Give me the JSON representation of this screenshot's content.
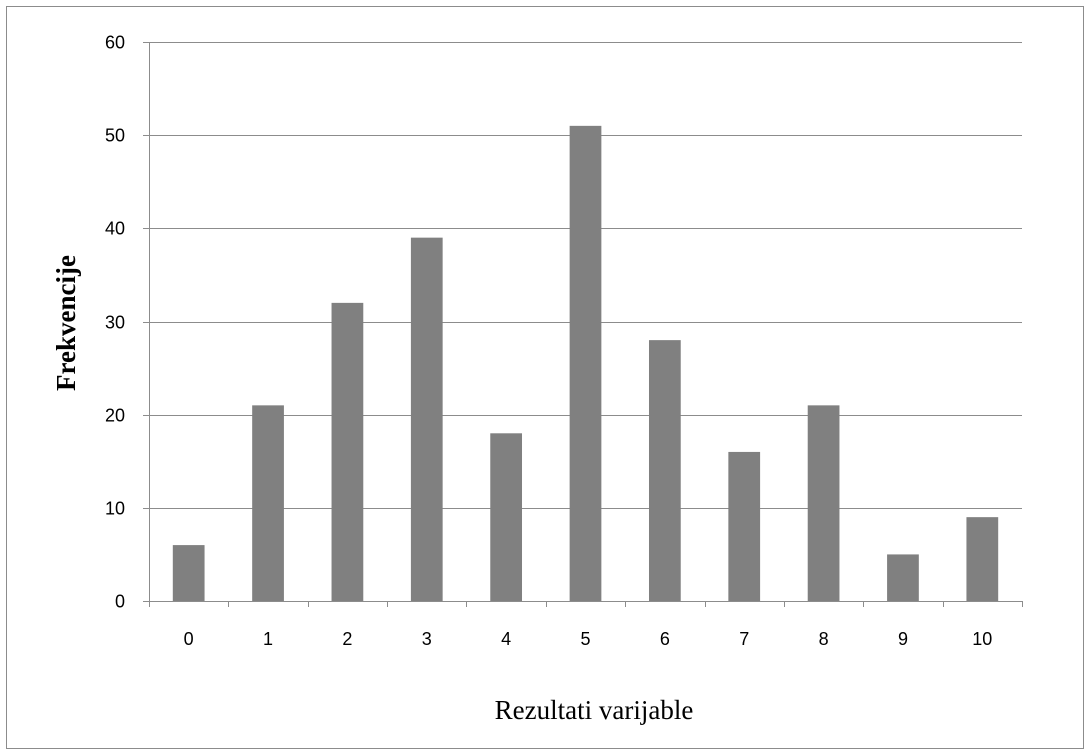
{
  "chart_data": {
    "type": "bar",
    "categories": [
      "0",
      "1",
      "2",
      "3",
      "4",
      "5",
      "6",
      "7",
      "8",
      "9",
      "10"
    ],
    "values": [
      6,
      21,
      32,
      39,
      18,
      51,
      28,
      16,
      21,
      5,
      9
    ],
    "title": "",
    "xlabel": "Rezultati varijable",
    "ylabel": "Frekvencije",
    "ylim": [
      0,
      60
    ],
    "yticks": [
      0,
      10,
      20,
      30,
      40,
      50,
      60
    ],
    "grid": true,
    "legend": "none",
    "bar_color": "#808080",
    "grid_color": "#8c8c8c"
  }
}
